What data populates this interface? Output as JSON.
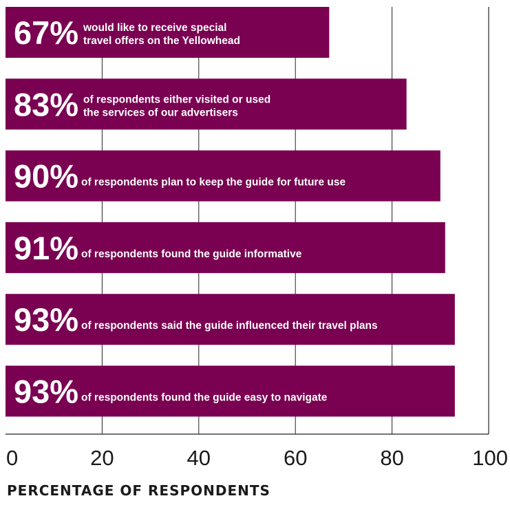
{
  "chart_data": {
    "type": "bar",
    "orientation": "horizontal",
    "xlabel": "PERCENTAGE OF RESPONDENTS",
    "xlim": [
      0,
      100
    ],
    "ticks": [
      "0",
      "20",
      "40",
      "60",
      "80",
      "100"
    ],
    "grid": true,
    "bar_color": "#7a0051",
    "bars": [
      {
        "value": 67,
        "label": "67%",
        "description": [
          "would like to receive special",
          "travel offers on the Yellowhead"
        ]
      },
      {
        "value": 83,
        "label": "83%",
        "description": [
          "of respondents either visited or used",
          "the services of our advertisers"
        ]
      },
      {
        "value": 90,
        "label": "90%",
        "description": [
          "of respondents plan to keep the guide for future use"
        ]
      },
      {
        "value": 91,
        "label": "91%",
        "description": [
          "of respondents found the guide informative"
        ]
      },
      {
        "value": 93,
        "label": "93%",
        "description": [
          "of respondents said the guide influenced their travel plans"
        ]
      },
      {
        "value": 93,
        "label": "93%",
        "description": [
          "of respondents found the guide easy to navigate"
        ]
      }
    ]
  }
}
